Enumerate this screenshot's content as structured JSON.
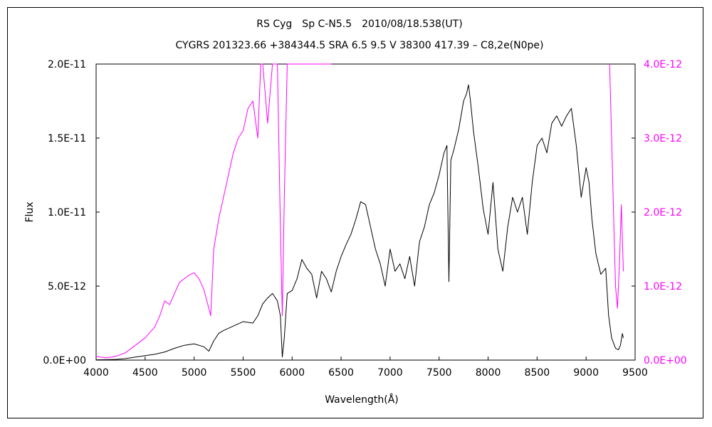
{
  "chart_data": {
    "type": "line",
    "title": "RS Cyg　Sp C-N5.5　2010/08/18.538(UT)",
    "subtitle": "CYGRS 201323.66 +384344.5 SRA 6.5 9.5 V 38300 417.39 – C8,2e(N0pe)",
    "xlabel": "Wavelength(Å)",
    "ylabel": "Flux",
    "xlim": [
      4000,
      9500
    ],
    "ylim": [
      0,
      2e-11
    ],
    "y2lim": [
      0,
      4e-12
    ],
    "xticks": [
      "4000",
      "4500",
      "5000",
      "5500",
      "6000",
      "6500",
      "7000",
      "7500",
      "8000",
      "8500",
      "9000",
      "9500"
    ],
    "yticks": [
      "0.0E+00",
      "5.0E-12",
      "1.0E-11",
      "1.5E-11",
      "2.0E-11"
    ],
    "y2ticks": [
      "0.0E+00",
      "1.0E-12",
      "2.0E-12",
      "3.0E-12",
      "4.0E-12"
    ],
    "grid": false,
    "legend": "none",
    "series": [
      {
        "color": "#000000",
        "axis": "left",
        "x": [
          4000,
          4100,
          4200,
          4300,
          4400,
          4500,
          4600,
          4700,
          4800,
          4900,
          5000,
          5100,
          5150,
          5200,
          5250,
          5300,
          5400,
          5500,
          5600,
          5650,
          5700,
          5750,
          5800,
          5850,
          5880,
          5900,
          5920,
          5950,
          6000,
          6050,
          6100,
          6150,
          6200,
          6250,
          6300,
          6350,
          6400,
          6450,
          6500,
          6550,
          6600,
          6650,
          6700,
          6750,
          6800,
          6850,
          6900,
          6950,
          7000,
          7050,
          7100,
          7150,
          7200,
          7250,
          7300,
          7350,
          7400,
          7450,
          7500,
          7550,
          7580,
          7600,
          7620,
          7650,
          7700,
          7750,
          7780,
          7800,
          7820,
          7850,
          7900,
          7950,
          8000,
          8050,
          8100,
          8150,
          8200,
          8250,
          8300,
          8350,
          8400,
          8450,
          8500,
          8550,
          8600,
          8650,
          8700,
          8750,
          8800,
          8850,
          8900,
          8950,
          9000,
          9030,
          9060,
          9100,
          9150,
          9200,
          9230,
          9260,
          9300,
          9330,
          9350,
          9370,
          9380
        ],
        "y": [
          2e-14,
          3e-14,
          5e-14,
          1e-13,
          2e-13,
          3e-13,
          4e-13,
          5.5e-13,
          8e-13,
          1e-12,
          1.1e-12,
          9e-13,
          6e-13,
          1.3e-12,
          1.8e-12,
          2e-12,
          2.3e-12,
          2.6e-12,
          2.5e-12,
          3e-12,
          3.8e-12,
          4.2e-12,
          4.5e-12,
          4e-12,
          3e-12,
          2e-13,
          1.5e-12,
          4.5e-12,
          4.7e-12,
          5.5e-12,
          6.8e-12,
          6.2e-12,
          5.8e-12,
          4.2e-12,
          6e-12,
          5.5e-12,
          4.6e-12,
          6e-12,
          7e-12,
          7.8e-12,
          8.5e-12,
          9.5e-12,
          1.07e-11,
          1.05e-11,
          9e-12,
          7.5e-12,
          6.5e-12,
          5e-12,
          7.5e-12,
          6e-12,
          6.5e-12,
          5.5e-12,
          7e-12,
          5e-12,
          8e-12,
          9e-12,
          1.05e-11,
          1.13e-11,
          1.25e-11,
          1.4e-11,
          1.45e-11,
          5.3e-12,
          1.35e-11,
          1.42e-11,
          1.56e-11,
          1.75e-11,
          1.8e-11,
          1.86e-11,
          1.75e-11,
          1.55e-11,
          1.3e-11,
          1.02e-11,
          8.5e-12,
          1.2e-11,
          7.5e-12,
          6e-12,
          9e-12,
          1.1e-11,
          1e-11,
          1.1e-11,
          8.5e-12,
          1.2e-11,
          1.45e-11,
          1.5e-11,
          1.4e-11,
          1.6e-11,
          1.65e-11,
          1.58e-11,
          1.65e-11,
          1.7e-11,
          1.45e-11,
          1.1e-11,
          1.3e-11,
          1.2e-11,
          9.5e-12,
          7.2e-12,
          5.8e-12,
          6.2e-12,
          3e-12,
          1.5e-12,
          8e-13,
          7e-13,
          1e-12,
          1.8e-12,
          1.5e-12
        ]
      },
      {
        "color": "#ff00ff",
        "axis": "right",
        "x": [
          4000,
          4100,
          4200,
          4300,
          4400,
          4500,
          4600,
          4650,
          4700,
          4750,
          4800,
          4850,
          4900,
          4950,
          5000,
          5050,
          5100,
          5150,
          5170,
          5200,
          5250,
          5300,
          5350,
          5400,
          5450,
          5500,
          5550,
          5600,
          5650,
          5680,
          5700,
          5750,
          5800,
          5850,
          5880,
          5900,
          5920,
          5950,
          6000,
          6050,
          6100,
          6150,
          6200,
          6250,
          6300,
          6350,
          6400,
          9240,
          9260,
          9280,
          9300,
          9320,
          9340,
          9360,
          9380
        ],
        "y": [
          5e-14,
          3e-14,
          5e-14,
          1e-13,
          2e-13,
          3e-13,
          4.5e-13,
          6e-13,
          8e-13,
          7.5e-13,
          9e-13,
          1.05e-12,
          1.1e-12,
          1.15e-12,
          1.18e-12,
          1.1e-12,
          9.5e-13,
          7e-13,
          6e-13,
          1.5e-12,
          1.9e-12,
          2.2e-12,
          2.5e-12,
          2.8e-12,
          3e-12,
          3.1e-12,
          3.4e-12,
          3.5e-12,
          3e-12,
          4e-12,
          4e-12,
          3.2e-12,
          4e-12,
          4e-12,
          1.8e-12,
          6e-13,
          2.2e-12,
          4e-12,
          4e-12,
          4e-12,
          4e-12,
          4e-12,
          4e-12,
          4e-12,
          4e-12,
          4e-12,
          4e-12,
          4e-12,
          3e-12,
          2e-12,
          1e-12,
          7e-13,
          1.3e-12,
          2.1e-12,
          1.2e-12
        ]
      }
    ]
  }
}
